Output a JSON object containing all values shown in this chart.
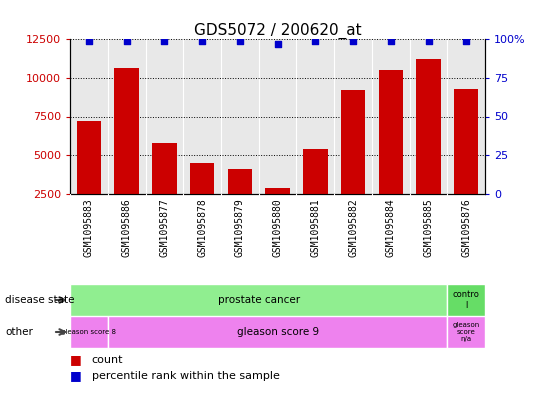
{
  "title": "GDS5072 / 200620_at",
  "samples": [
    "GSM1095883",
    "GSM1095886",
    "GSM1095877",
    "GSM1095878",
    "GSM1095879",
    "GSM1095880",
    "GSM1095881",
    "GSM1095882",
    "GSM1095884",
    "GSM1095885",
    "GSM1095876"
  ],
  "counts": [
    7200,
    10600,
    5800,
    4500,
    4100,
    2900,
    5400,
    9200,
    10500,
    11200,
    9300
  ],
  "percentiles": [
    99,
    99,
    99,
    99,
    99,
    97,
    99,
    99,
    99,
    99,
    99
  ],
  "ylim_left": [
    2500,
    12500
  ],
  "ylim_right": [
    0,
    100
  ],
  "yticks_left": [
    2500,
    5000,
    7500,
    10000,
    12500
  ],
  "yticks_right": [
    0,
    25,
    50,
    75,
    100
  ],
  "bar_color": "#cc0000",
  "dot_color": "#0000cc",
  "bar_width": 0.65,
  "disease_state_color": "#90ee90",
  "other_color": "#ee82ee",
  "title_fontsize": 11,
  "tick_fontsize": 8,
  "sample_fontsize": 7,
  "annot_fontsize": 7.5,
  "legend_fontsize": 8
}
